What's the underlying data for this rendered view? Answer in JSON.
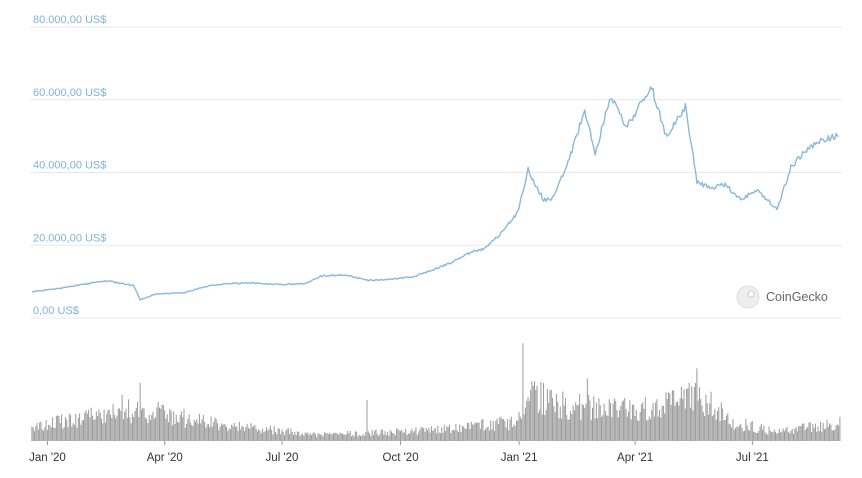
{
  "chart_data": {
    "type": "line",
    "watermark": "CoinGecko",
    "colors": {
      "line": "#8ab8dc",
      "grid": "#e8e8e8",
      "volume": "#9a9a9a",
      "ytick": "#7fb3d9"
    },
    "y_ticks": [
      {
        "value": 0,
        "label": "0,00 US$"
      },
      {
        "value": 20000,
        "label": "20.000,00 US$"
      },
      {
        "value": 40000,
        "label": "40.000,00 US$"
      },
      {
        "value": 60000,
        "label": "60.000,00 US$"
      },
      {
        "value": 80000,
        "label": "80.000,00 US$"
      }
    ],
    "ylim": [
      0,
      80000
    ],
    "xlim": [
      "2019-12-20",
      "2021-09-07"
    ],
    "x_ticks": [
      {
        "date": "2020-01-01",
        "label": "Jan '20"
      },
      {
        "date": "2020-04-01",
        "label": "Apr '20"
      },
      {
        "date": "2020-07-01",
        "label": "Jul '20"
      },
      {
        "date": "2020-10-01",
        "label": "Oct '20"
      },
      {
        "date": "2021-01-01",
        "label": "Jan '21"
      },
      {
        "date": "2021-04-01",
        "label": "Apr '21"
      },
      {
        "date": "2021-07-01",
        "label": "Jul '21"
      }
    ],
    "grid": true,
    "series": [
      {
        "x": [
          "2019-12-20",
          "2020-01-10",
          "2020-02-01",
          "2020-02-15",
          "2020-03-08",
          "2020-03-13",
          "2020-03-25",
          "2020-04-15",
          "2020-05-05",
          "2020-05-20",
          "2020-06-10",
          "2020-07-01",
          "2020-07-20",
          "2020-08-01",
          "2020-08-20",
          "2020-09-05",
          "2020-09-25",
          "2020-10-10",
          "2020-10-25",
          "2020-11-10",
          "2020-11-25",
          "2020-12-05",
          "2020-12-18",
          "2020-12-31",
          "2021-01-08",
          "2021-01-20",
          "2021-01-28",
          "2021-02-10",
          "2021-02-21",
          "2021-03-01",
          "2021-03-13",
          "2021-03-25",
          "2021-04-05",
          "2021-04-14",
          "2021-04-25",
          "2021-05-10",
          "2021-05-19",
          "2021-05-30",
          "2021-06-10",
          "2021-06-22",
          "2021-07-05",
          "2021-07-20",
          "2021-07-31",
          "2021-08-14",
          "2021-08-25",
          "2021-09-06"
        ],
        "y": [
          7200,
          8100,
          9400,
          10300,
          8900,
          5000,
          6600,
          6900,
          8800,
          9500,
          9600,
          9200,
          9500,
          11600,
          11900,
          10300,
          10700,
          11300,
          13100,
          15300,
          18200,
          19100,
          23300,
          29000,
          40700,
          32400,
          33100,
          44900,
          57300,
          45100,
          61100,
          52300,
          58700,
          63300,
          50100,
          58200,
          37500,
          35600,
          36700,
          32500,
          35300,
          29800,
          41500,
          47000,
          48900,
          50200
        ]
      }
    ],
    "volume": {
      "x": [
        "2019-12-20",
        "2020-02-15",
        "2020-03-13",
        "2020-05-15",
        "2020-08-01",
        "2020-10-20",
        "2020-12-31",
        "2021-01-11",
        "2021-02-10",
        "2021-03-15",
        "2021-04-18",
        "2021-05-19",
        "2021-06-15",
        "2021-07-20",
        "2021-09-06"
      ],
      "y": [
        22,
        42,
        50,
        25,
        10,
        16,
        30,
        70,
        55,
        48,
        52,
        75,
        30,
        14,
        28
      ],
      "spikes": [
        {
          "x": "2020-03-13",
          "y": 88
        },
        {
          "x": "2020-02-28",
          "y": 70
        },
        {
          "x": "2020-09-05",
          "y": 62
        },
        {
          "x": "2021-01-04",
          "y": 148
        },
        {
          "x": "2021-01-11",
          "y": 90
        },
        {
          "x": "2021-02-23",
          "y": 95
        },
        {
          "x": "2021-05-19",
          "y": 110
        },
        {
          "x": "2021-05-12",
          "y": 80
        }
      ]
    }
  }
}
